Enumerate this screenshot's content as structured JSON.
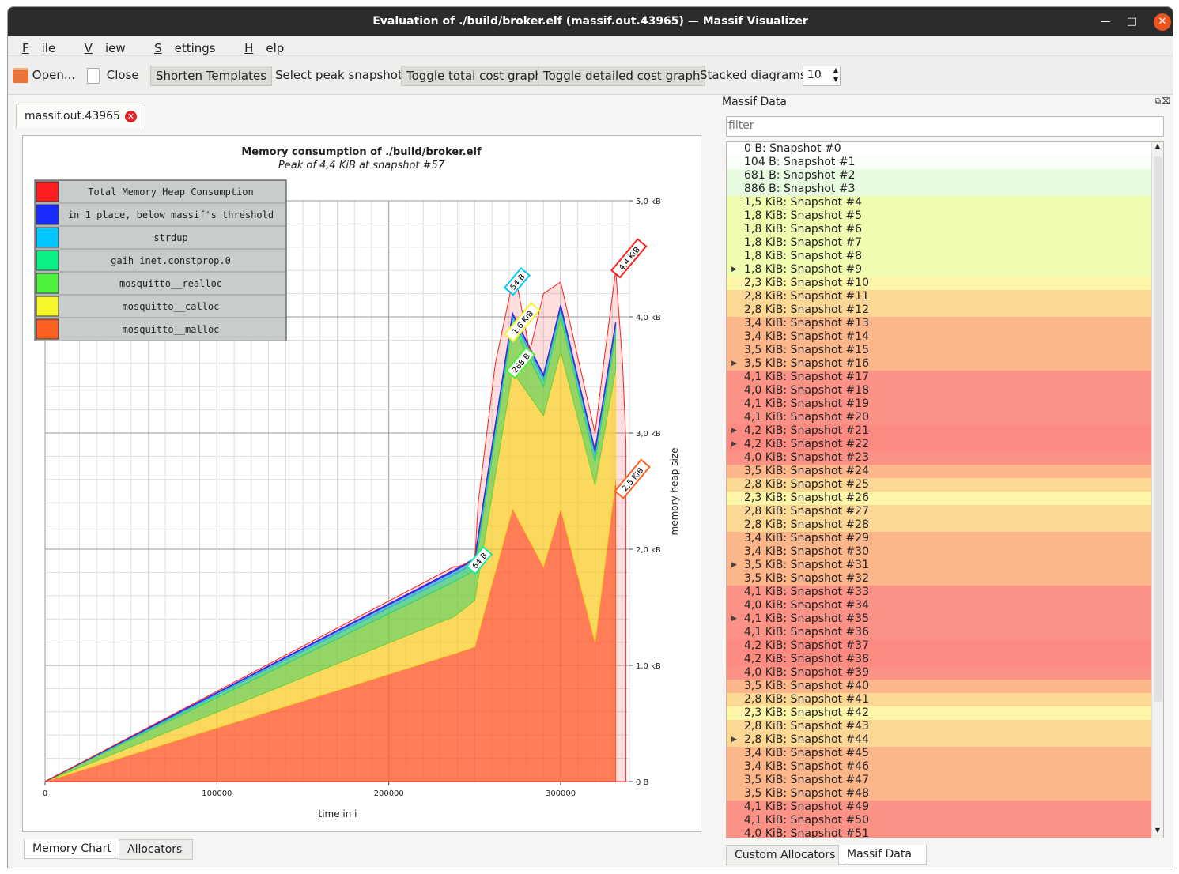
{
  "window": {
    "title": "Evaluation of ./build/broker.elf (massif.out.43965) — Massif Visualizer"
  },
  "menu": [
    {
      "key": "F",
      "rest": "ile"
    },
    {
      "key": "V",
      "rest": "iew"
    },
    {
      "key": "S",
      "rest": "ettings"
    },
    {
      "key": "H",
      "rest": "elp"
    }
  ],
  "toolbar": {
    "open": "Open...",
    "close": "Close",
    "shorten": "Shorten Templates",
    "select_peak": "Select peak snapshot",
    "toggle_total": "Toggle total cost graph",
    "toggle_detailed": "Toggle detailed cost graph",
    "stacked_label": "Stacked diagrams:",
    "stacked_value": "10"
  },
  "document_tab": "massif.out.43965",
  "bottom_tabs": {
    "memory_chart": "Memory Chart",
    "allocators": "Allocators"
  },
  "right_panel": {
    "title": "Massif Data",
    "filter_placeholder": "filter",
    "tabs": {
      "custom": "Custom Allocators",
      "massif": "Massif Data"
    }
  },
  "snapshots": [
    {
      "label": "0 B: Snapshot #0",
      "color": "#ffffff",
      "expandable": false
    },
    {
      "label": "104 B: Snapshot #1",
      "color": "#fbfffa",
      "expandable": false
    },
    {
      "label": "681 B: Snapshot #2",
      "color": "#e6fbe0",
      "expandable": false
    },
    {
      "label": "886 B: Snapshot #3",
      "color": "#e6fbe0",
      "expandable": false
    },
    {
      "label": "1,5 KiB: Snapshot #4",
      "color": "#f0fdb0",
      "expandable": false
    },
    {
      "label": "1,8 KiB: Snapshot #5",
      "color": "#f0fdb0",
      "expandable": false
    },
    {
      "label": "1,8 KiB: Snapshot #6",
      "color": "#f0fdb0",
      "expandable": false
    },
    {
      "label": "1,8 KiB: Snapshot #7",
      "color": "#f0fdb0",
      "expandable": false
    },
    {
      "label": "1,8 KiB: Snapshot #8",
      "color": "#f0fdb0",
      "expandable": false
    },
    {
      "label": "1,8 KiB: Snapshot #9",
      "color": "#f0fdb0",
      "expandable": true
    },
    {
      "label": "2,3 KiB: Snapshot #10",
      "color": "#fdf5a8",
      "expandable": false
    },
    {
      "label": "2,8 KiB: Snapshot #11",
      "color": "#fdd895",
      "expandable": false
    },
    {
      "label": "2,8 KiB: Snapshot #12",
      "color": "#fdd895",
      "expandable": false
    },
    {
      "label": "3,4 KiB: Snapshot #13",
      "color": "#fdb58a",
      "expandable": false
    },
    {
      "label": "3,4 KiB: Snapshot #14",
      "color": "#fdb58a",
      "expandable": false
    },
    {
      "label": "3,5 KiB: Snapshot #15",
      "color": "#fdb58a",
      "expandable": false
    },
    {
      "label": "3,5 KiB: Snapshot #16",
      "color": "#fdb58a",
      "expandable": true
    },
    {
      "label": "4,1 KiB: Snapshot #17",
      "color": "#fc9185",
      "expandable": false
    },
    {
      "label": "4,0 KiB: Snapshot #18",
      "color": "#fc9185",
      "expandable": false
    },
    {
      "label": "4,1 KiB: Snapshot #19",
      "color": "#fc9185",
      "expandable": false
    },
    {
      "label": "4,1 KiB: Snapshot #20",
      "color": "#fc9185",
      "expandable": false
    },
    {
      "label": "4,2 KiB: Snapshot #21",
      "color": "#fc8a80",
      "expandable": true
    },
    {
      "label": "4,2 KiB: Snapshot #22",
      "color": "#fc8a80",
      "expandable": true
    },
    {
      "label": "4,0 KiB: Snapshot #23",
      "color": "#fc9185",
      "expandable": false
    },
    {
      "label": "3,5 KiB: Snapshot #24",
      "color": "#fdb58a",
      "expandable": false
    },
    {
      "label": "2,8 KiB: Snapshot #25",
      "color": "#fdd895",
      "expandable": false
    },
    {
      "label": "2,3 KiB: Snapshot #26",
      "color": "#fdf5a8",
      "expandable": false
    },
    {
      "label": "2,8 KiB: Snapshot #27",
      "color": "#fdd895",
      "expandable": false
    },
    {
      "label": "2,8 KiB: Snapshot #28",
      "color": "#fdd895",
      "expandable": false
    },
    {
      "label": "3,4 KiB: Snapshot #29",
      "color": "#fdb58a",
      "expandable": false
    },
    {
      "label": "3,4 KiB: Snapshot #30",
      "color": "#fdb58a",
      "expandable": false
    },
    {
      "label": "3,5 KiB: Snapshot #31",
      "color": "#fdb58a",
      "expandable": true
    },
    {
      "label": "3,5 KiB: Snapshot #32",
      "color": "#fdb58a",
      "expandable": false
    },
    {
      "label": "4,1 KiB: Snapshot #33",
      "color": "#fc9185",
      "expandable": false
    },
    {
      "label": "4,0 KiB: Snapshot #34",
      "color": "#fc9185",
      "expandable": false
    },
    {
      "label": "4,1 KiB: Snapshot #35",
      "color": "#fc9185",
      "expandable": true
    },
    {
      "label": "4,1 KiB: Snapshot #36",
      "color": "#fc9185",
      "expandable": false
    },
    {
      "label": "4,2 KiB: Snapshot #37",
      "color": "#fc8a80",
      "expandable": false
    },
    {
      "label": "4,2 KiB: Snapshot #38",
      "color": "#fc8a80",
      "expandable": false
    },
    {
      "label": "4,0 KiB: Snapshot #39",
      "color": "#fc9185",
      "expandable": false
    },
    {
      "label": "3,5 KiB: Snapshot #40",
      "color": "#fdb58a",
      "expandable": false
    },
    {
      "label": "2,8 KiB: Snapshot #41",
      "color": "#fdd895",
      "expandable": false
    },
    {
      "label": "2,3 KiB: Snapshot #42",
      "color": "#fdf5a8",
      "expandable": false
    },
    {
      "label": "2,8 KiB: Snapshot #43",
      "color": "#fdd895",
      "expandable": false
    },
    {
      "label": "2,8 KiB: Snapshot #44",
      "color": "#fdd895",
      "expandable": true
    },
    {
      "label": "3,4 KiB: Snapshot #45",
      "color": "#fdb58a",
      "expandable": false
    },
    {
      "label": "3,4 KiB: Snapshot #46",
      "color": "#fdb58a",
      "expandable": false
    },
    {
      "label": "3,5 KiB: Snapshot #47",
      "color": "#fdb58a",
      "expandable": false
    },
    {
      "label": "3,5 KiB: Snapshot #48",
      "color": "#fdb58a",
      "expandable": false
    },
    {
      "label": "4,1 KiB: Snapshot #49",
      "color": "#fc9185",
      "expandable": false
    },
    {
      "label": "4,1 KiB: Snapshot #50",
      "color": "#fc9185",
      "expandable": false
    },
    {
      "label": "4,0 KiB: Snapshot #51",
      "color": "#fc9185",
      "expandable": false
    }
  ],
  "chart_data": {
    "type": "area",
    "title": "Memory consumption of ./build/broker.elf",
    "subtitle": "Peak of 4,4 KiB at snapshot #57",
    "xlabel": "time in i",
    "ylabel": "memory heap size",
    "xlim": [
      0,
      340000
    ],
    "ylim": [
      0,
      5.0
    ],
    "x_ticks": [
      "0",
      "100000",
      "200000",
      "300000"
    ],
    "x_tick_values": [
      0,
      100000,
      200000,
      300000
    ],
    "y_ticks": [
      "0 B",
      "1,0 kB",
      "2,0 kB",
      "3,0 kB",
      "4,0 kB",
      "5,0 kB"
    ],
    "y_tick_values": [
      0,
      1.0,
      2.0,
      3.0,
      4.0,
      5.0
    ],
    "grid": true,
    "stacked": true,
    "legend_position": "top-left",
    "x": [
      0,
      238000,
      250000,
      272000,
      290000,
      300000,
      320000,
      332000
    ],
    "series": [
      {
        "name": "mosquitto__malloc",
        "color": "#ff5f1f",
        "values": [
          0,
          1.1,
          1.16,
          2.35,
          1.85,
          2.35,
          1.2,
          2.6
        ]
      },
      {
        "name": "mosquitto__calloc",
        "color": "#f6f62a",
        "values": [
          0,
          0.32,
          0.4,
          1.18,
          1.3,
          1.35,
          1.35,
          0.95
        ]
      },
      {
        "name": "mosquitto__realloc",
        "color": "#4ef13b",
        "values": [
          0,
          0.3,
          0.26,
          0.4,
          0.25,
          0.3,
          0.2,
          0.3
        ]
      },
      {
        "name": "gaih_inet.constprop.0",
        "color": "#0af087",
        "values": [
          0,
          0.06,
          0.06,
          0.06,
          0.06,
          0.06,
          0.06,
          0.06
        ]
      },
      {
        "name": "strdup",
        "color": "#00c8ff",
        "values": [
          0,
          0.03,
          0.03,
          0.03,
          0.03,
          0.03,
          0.03,
          0.03
        ]
      },
      {
        "name": "in 1 place, below massif's threshold",
        "color": "#1a2bff",
        "values": [
          0,
          0.01,
          0.01,
          0.01,
          0.01,
          0.01,
          0.01,
          0.01
        ]
      }
    ],
    "total_series": {
      "name": "Total Memory Heap Consumption",
      "color": "#ff1f1f",
      "x": [
        0,
        238000,
        240000,
        250000,
        252000,
        262000,
        272000,
        275000,
        282000,
        290000,
        300000,
        320000,
        325000,
        332000,
        336000,
        338000
      ],
      "values": [
        0,
        1.85,
        1.85,
        1.9,
        2.4,
        3.6,
        4.3,
        4.25,
        3.7,
        4.2,
        4.3,
        3.0,
        3.6,
        4.4,
        3.6,
        2.9
      ]
    },
    "annotations": [
      {
        "text": "64 B",
        "x": 253000,
        "y": 1.9,
        "color": "#1fe89e"
      },
      {
        "text": "54 B",
        "x": 275000,
        "y": 4.3,
        "color": "#00c8ff"
      },
      {
        "text": "1,6 KiB",
        "x": 278000,
        "y": 3.95,
        "color": "#f6f62a"
      },
      {
        "text": "268 B",
        "x": 277000,
        "y": 3.6,
        "color": "#4ef13b"
      },
      {
        "text": "4,4 KiB",
        "x": 340000,
        "y": 4.5,
        "color": "#ff1f1f"
      },
      {
        "text": "2,5 KiB",
        "x": 342000,
        "y": 2.6,
        "color": "#ff5f1f"
      }
    ]
  }
}
